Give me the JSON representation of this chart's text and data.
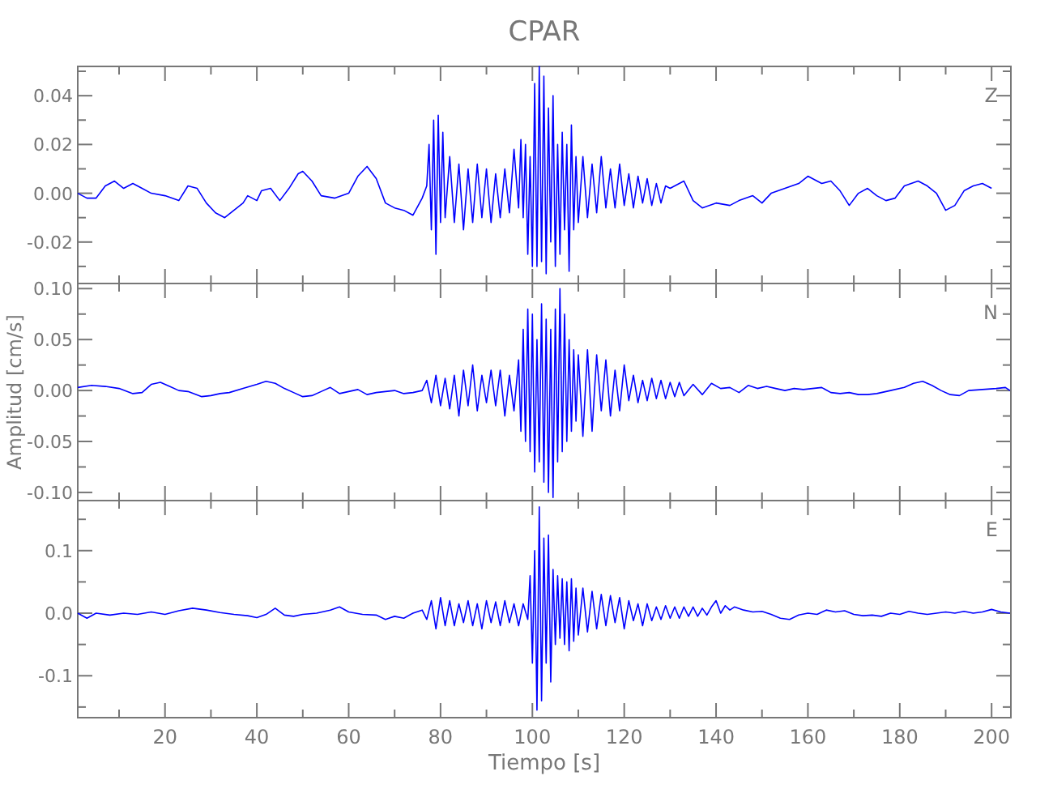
{
  "chart_data": [
    {
      "type": "line",
      "title": "CPAR",
      "annotations": [
        "Z"
      ],
      "color": "#0000ff",
      "tick_labels": "y",
      "xlim": [
        1,
        204.2
      ],
      "xticks": [
        {
          "value": 10,
          "label": null
        },
        20,
        {
          "value": 30,
          "label": null
        },
        40,
        {
          "value": 50,
          "label": null
        },
        60,
        {
          "value": 70,
          "label": null
        },
        80,
        {
          "value": 90,
          "label": null
        },
        100,
        {
          "value": 110,
          "label": null
        },
        120,
        {
          "value": 130,
          "label": null
        },
        140,
        {
          "value": 150,
          "label": null
        },
        160,
        {
          "value": 170,
          "label": null
        },
        180,
        {
          "value": 190,
          "label": null
        },
        200
      ],
      "ylim": [
        -0.037,
        0.052
      ],
      "yticks": [
        {
          "value": -0.03,
          "label": null
        },
        {
          "value": -0.02,
          "label": "-0.02"
        },
        {
          "value": -0.01,
          "label": null
        },
        {
          "value": 0,
          "label": "0.00"
        },
        {
          "value": 0.01,
          "label": null
        },
        {
          "value": 0.02,
          "label": "0.02"
        },
        {
          "value": 0.03,
          "label": null
        },
        {
          "value": 0.04,
          "label": "0.04"
        },
        {
          "value": 0.05,
          "label": null
        }
      ],
      "x": [
        1,
        3,
        5,
        7,
        9,
        11,
        13,
        15,
        17,
        20,
        23,
        25,
        27,
        29,
        31,
        33,
        35,
        37,
        38,
        40,
        41,
        43,
        45,
        47,
        49,
        50,
        52,
        54,
        57,
        60,
        62,
        64,
        66,
        68,
        70,
        72,
        74,
        76,
        77,
        77.5,
        78,
        78.5,
        79,
        79.5,
        80,
        80.5,
        81,
        82,
        83,
        84,
        85,
        86,
        87,
        88,
        89,
        90,
        91,
        92,
        93,
        94,
        95,
        96,
        97,
        97.5,
        98,
        98.5,
        99,
        99.5,
        100,
        100.5,
        101,
        101.5,
        102,
        102.5,
        103,
        103.5,
        104,
        104.5,
        105,
        105.5,
        106,
        106.5,
        107,
        107.5,
        108,
        108.5,
        109,
        109.5,
        110,
        111,
        112,
        113,
        114,
        115,
        116,
        117,
        118,
        119,
        120,
        121,
        122,
        123,
        124,
        125,
        126,
        127,
        128,
        129,
        130,
        133,
        135,
        137,
        140,
        143,
        145,
        148,
        150,
        152,
        155,
        158,
        160,
        163,
        165,
        167,
        169,
        171,
        173,
        175,
        177,
        179,
        181,
        184,
        186,
        188,
        190,
        192,
        194,
        196,
        198,
        200
      ],
      "values": [
        0,
        -0.002,
        -0.002,
        0.003,
        0.005,
        0.002,
        0.004,
        0.002,
        0,
        -0.001,
        -0.003,
        0.003,
        0.002,
        -0.004,
        -0.008,
        -0.01,
        -0.007,
        -0.004,
        -0.001,
        -0.003,
        0.001,
        0.002,
        -0.003,
        0.002,
        0.008,
        0.009,
        0.005,
        -0.001,
        -0.002,
        0,
        0.007,
        0.011,
        0.006,
        -0.004,
        -0.006,
        -0.007,
        -0.009,
        -0.002,
        0.003,
        0.02,
        -0.015,
        0.03,
        -0.025,
        0.032,
        -0.012,
        0.025,
        -0.01,
        0.015,
        -0.012,
        0.012,
        -0.015,
        0.01,
        -0.012,
        0.012,
        -0.01,
        0.01,
        -0.012,
        0.008,
        -0.01,
        0.01,
        -0.008,
        0.018,
        -0.006,
        0.022,
        -0.01,
        0.02,
        -0.025,
        0.015,
        -0.03,
        0.045,
        -0.03,
        0.052,
        -0.028,
        0.048,
        -0.033,
        0.035,
        -0.02,
        0.04,
        -0.03,
        0.02,
        -0.025,
        0.025,
        -0.015,
        0.02,
        -0.032,
        0.028,
        -0.015,
        0.015,
        -0.012,
        0.015,
        -0.01,
        0.012,
        -0.008,
        0.015,
        -0.006,
        0.01,
        -0.006,
        0.012,
        -0.005,
        0.008,
        -0.006,
        0.007,
        -0.004,
        0.006,
        -0.005,
        0.004,
        -0.004,
        0.003,
        0.002,
        0.005,
        -0.003,
        -0.006,
        -0.004,
        -0.005,
        -0.003,
        -0.001,
        -0.004,
        0,
        0.002,
        0.004,
        0.007,
        0.004,
        0.005,
        0.001,
        -0.005,
        0,
        0.002,
        -0.001,
        -0.003,
        -0.002,
        0.003,
        0.005,
        0.003,
        0,
        -0.007,
        -0.005,
        0.001,
        0.003,
        0.004,
        0.002
      ]
    },
    {
      "type": "line",
      "ylabel": "Amplitud [cm/s]",
      "annotations": [
        "N"
      ],
      "color": "#0000ff",
      "tick_labels": "y",
      "xlim": [
        1,
        204.2
      ],
      "xticks": [
        {
          "value": 10,
          "label": null
        },
        20,
        {
          "value": 30,
          "label": null
        },
        40,
        {
          "value": 50,
          "label": null
        },
        60,
        {
          "value": 70,
          "label": null
        },
        80,
        {
          "value": 90,
          "label": null
        },
        100,
        {
          "value": 110,
          "label": null
        },
        120,
        {
          "value": 130,
          "label": null
        },
        140,
        {
          "value": 150,
          "label": null
        },
        160,
        {
          "value": 170,
          "label": null
        },
        180,
        {
          "value": 190,
          "label": null
        },
        200
      ],
      "ylim": [
        -0.108,
        0.105
      ],
      "yticks": [
        {
          "value": -0.1,
          "label": "-0.10"
        },
        {
          "value": -0.075,
          "label": null
        },
        {
          "value": -0.05,
          "label": "-0.05"
        },
        {
          "value": -0.025,
          "label": null
        },
        {
          "value": 0,
          "label": "0.00"
        },
        {
          "value": 0.025,
          "label": null
        },
        {
          "value": 0.05,
          "label": "0.05"
        },
        {
          "value": 0.075,
          "label": null
        },
        {
          "value": 0.1,
          "label": "0.10"
        }
      ],
      "x": [
        1,
        4,
        7,
        10,
        13,
        15,
        17,
        19,
        21,
        23,
        25,
        28,
        30,
        32,
        34,
        37,
        40,
        42,
        44,
        46,
        48,
        50,
        52,
        54,
        56,
        58,
        60,
        62,
        64,
        66,
        68,
        70,
        72,
        74,
        76,
        77,
        78,
        79,
        80,
        81,
        82,
        83,
        84,
        85,
        86,
        87,
        88,
        89,
        90,
        91,
        92,
        93,
        94,
        95,
        96,
        97,
        97.5,
        98,
        98.5,
        99,
        99.5,
        100,
        100.5,
        101,
        101.5,
        102,
        102.5,
        103,
        103.5,
        104,
        104.5,
        105,
        105.5,
        106,
        106.5,
        107,
        107.5,
        108,
        108.5,
        109,
        109.5,
        110,
        111,
        112,
        113,
        114,
        115,
        116,
        117,
        118,
        119,
        120,
        121,
        122,
        123,
        124,
        125,
        126,
        127,
        128,
        129,
        130,
        131,
        132,
        133,
        135,
        137,
        139,
        141,
        143,
        145,
        147,
        149,
        151,
        153,
        155,
        157,
        159,
        161,
        163,
        165,
        167,
        169,
        171,
        173,
        175,
        178,
        181,
        183,
        185,
        187,
        189,
        191,
        193,
        195,
        198,
        201,
        203,
        204
      ],
      "values": [
        0.003,
        0.005,
        0.004,
        0.002,
        -0.003,
        -0.002,
        0.006,
        0.008,
        0.004,
        0,
        -0.001,
        -0.006,
        -0.005,
        -0.003,
        -0.002,
        0.002,
        0.006,
        0.009,
        0.007,
        0.002,
        -0.002,
        -0.006,
        -0.005,
        -0.001,
        0.003,
        -0.003,
        -0.001,
        0.001,
        -0.004,
        -0.002,
        -0.001,
        0,
        -0.003,
        -0.002,
        0,
        0.01,
        -0.012,
        0.015,
        -0.015,
        0.012,
        -0.018,
        0.015,
        -0.025,
        0.02,
        -0.015,
        0.025,
        -0.02,
        0.015,
        -0.012,
        0.02,
        -0.015,
        0.02,
        -0.025,
        0.015,
        -0.02,
        0.03,
        -0.04,
        0.06,
        -0.05,
        0.08,
        -0.06,
        0.075,
        -0.08,
        0.05,
        -0.07,
        0.085,
        -0.09,
        0.07,
        -0.1,
        0.06,
        -0.105,
        0.08,
        -0.07,
        0.1,
        -0.06,
        0.075,
        -0.05,
        0.05,
        -0.04,
        0.04,
        -0.03,
        0.035,
        -0.045,
        0.04,
        -0.04,
        0.035,
        -0.02,
        0.03,
        -0.025,
        0.02,
        -0.02,
        0.025,
        -0.01,
        0.015,
        -0.012,
        0.01,
        -0.01,
        0.012,
        -0.008,
        0.01,
        -0.008,
        0.008,
        -0.006,
        0.008,
        -0.005,
        0.006,
        -0.004,
        0.007,
        0.002,
        0.003,
        -0.002,
        0.005,
        0.002,
        0.004,
        0.002,
        0,
        0.002,
        0.001,
        0.002,
        0.003,
        -0.002,
        -0.003,
        -0.002,
        -0.004,
        -0.004,
        -0.003,
        0,
        0.003,
        0.007,
        0.009,
        0.005,
        0,
        -0.004,
        -0.005,
        0,
        0.001,
        0.002,
        0.003,
        0
      ]
    },
    {
      "type": "line",
      "xlabel": "Tiempo [s]",
      "annotations": [
        "E"
      ],
      "color": "#0000ff",
      "xlim": [
        1,
        204.2
      ],
      "xticks": [
        {
          "value": 10,
          "label": null
        },
        {
          "value": 20,
          "label": "20"
        },
        {
          "value": 30,
          "label": null
        },
        {
          "value": 40,
          "label": "40"
        },
        {
          "value": 50,
          "label": null
        },
        {
          "value": 60,
          "label": "60"
        },
        {
          "value": 70,
          "label": null
        },
        {
          "value": 80,
          "label": "80"
        },
        {
          "value": 90,
          "label": null
        },
        {
          "value": 100,
          "label": "100"
        },
        {
          "value": 110,
          "label": null
        },
        {
          "value": 120,
          "label": "120"
        },
        {
          "value": 130,
          "label": null
        },
        {
          "value": 140,
          "label": "140"
        },
        {
          "value": 150,
          "label": null
        },
        {
          "value": 160,
          "label": "160"
        },
        {
          "value": 170,
          "label": null
        },
        {
          "value": 180,
          "label": "180"
        },
        {
          "value": 190,
          "label": null
        },
        {
          "value": 200,
          "label": "200"
        }
      ],
      "ylim": [
        -0.167,
        0.18
      ],
      "yticks": [
        {
          "value": -0.15,
          "label": null
        },
        {
          "value": -0.1,
          "label": "-0.1"
        },
        {
          "value": -0.05,
          "label": null
        },
        {
          "value": 0,
          "label": "0.0"
        },
        {
          "value": 0.05,
          "label": null
        },
        {
          "value": 0.1,
          "label": "0.1"
        },
        {
          "value": 0.15,
          "label": null
        }
      ],
      "x": [
        1,
        3,
        5,
        8,
        11,
        14,
        17,
        20,
        23,
        26,
        29,
        32,
        35,
        38,
        40,
        42,
        44,
        46,
        48,
        50,
        53,
        56,
        58,
        60,
        63,
        66,
        68,
        70,
        72,
        74,
        76,
        77,
        78,
        79,
        80,
        81,
        82,
        83,
        84,
        85,
        86,
        87,
        88,
        89,
        90,
        91,
        92,
        93,
        94,
        95,
        96,
        97,
        98,
        99,
        99.5,
        100,
        100.5,
        101,
        101.5,
        102,
        102.5,
        103,
        103.5,
        104,
        104.5,
        105,
        105.5,
        106,
        106.5,
        107,
        107.5,
        108,
        108.5,
        109,
        109.5,
        110,
        111,
        112,
        113,
        114,
        115,
        116,
        117,
        118,
        119,
        120,
        121,
        122,
        123,
        124,
        125,
        126,
        127,
        128,
        129,
        130,
        131,
        132,
        133,
        134,
        135,
        136,
        137,
        138,
        139,
        140,
        141,
        142,
        143,
        144,
        146,
        148,
        150,
        152,
        154,
        156,
        158,
        160,
        162,
        164,
        166,
        168,
        170,
        172,
        174,
        176,
        178,
        180,
        182,
        184,
        186,
        188,
        190,
        192,
        194,
        196,
        198,
        200,
        202,
        204
      ],
      "values": [
        0,
        -0.008,
        0,
        -0.003,
        0,
        -0.002,
        0.002,
        -0.002,
        0.004,
        0.008,
        0.005,
        0.001,
        -0.002,
        -0.004,
        -0.007,
        -0.002,
        0.008,
        -0.003,
        -0.005,
        -0.002,
        0,
        0.005,
        0.01,
        0.002,
        -0.002,
        -0.003,
        -0.01,
        -0.005,
        -0.008,
        0,
        0.005,
        -0.01,
        0.02,
        -0.025,
        0.025,
        -0.02,
        0.02,
        -0.02,
        0.015,
        -0.015,
        0.02,
        -0.02,
        0.015,
        -0.025,
        0.02,
        -0.015,
        0.018,
        -0.02,
        0.02,
        -0.015,
        0.015,
        -0.02,
        0.015,
        -0.01,
        0.06,
        -0.08,
        0.1,
        -0.155,
        0.17,
        -0.14,
        0.12,
        -0.08,
        0.125,
        -0.11,
        0.07,
        -0.05,
        0.06,
        -0.04,
        0.055,
        -0.05,
        0.05,
        -0.06,
        0.055,
        -0.045,
        0.04,
        -0.035,
        0.04,
        -0.03,
        0.035,
        -0.025,
        0.03,
        -0.02,
        0.028,
        -0.015,
        0.025,
        -0.025,
        0.02,
        -0.012,
        0.015,
        -0.02,
        0.015,
        -0.012,
        0.01,
        -0.01,
        0.012,
        -0.008,
        0.01,
        -0.008,
        0.01,
        -0.005,
        0.01,
        -0.005,
        0.008,
        -0.003,
        0.01,
        0.02,
        0,
        0.012,
        0.005,
        0.01,
        0.005,
        0.002,
        0.003,
        -0.002,
        -0.008,
        -0.01,
        -0.003,
        0,
        -0.002,
        0.005,
        0.002,
        0.004,
        -0.002,
        -0.004,
        -0.003,
        -0.005,
        0,
        -0.002,
        0.003,
        0,
        -0.002,
        0,
        0.002,
        0,
        0.003,
        0,
        0.002,
        0.006,
        0.002,
        0
      ]
    }
  ]
}
